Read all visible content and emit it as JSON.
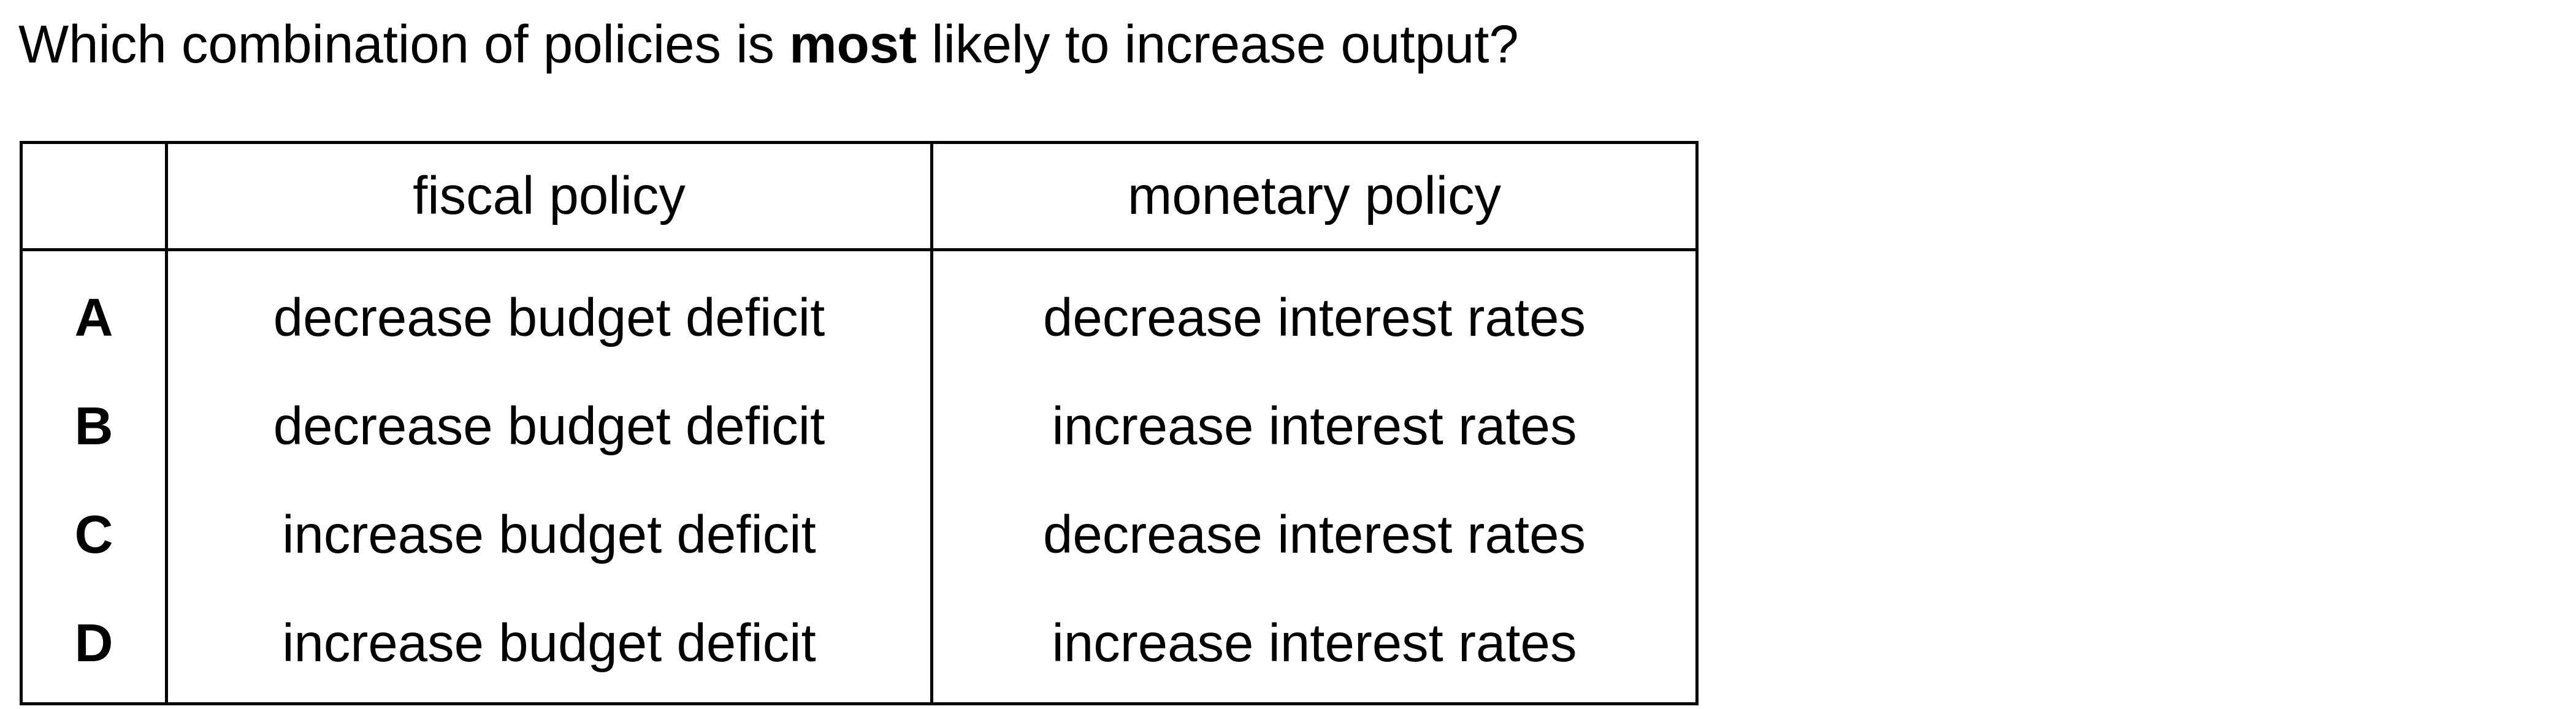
{
  "question": {
    "prefix": "Which combination of policies is ",
    "emphasis": "most",
    "suffix": " likely to increase output?"
  },
  "table": {
    "headers": [
      "",
      "fiscal policy",
      "monetary policy"
    ],
    "rows": [
      {
        "letter": "A",
        "fiscal": "decrease budget deficit",
        "monetary": "decrease interest rates"
      },
      {
        "letter": "B",
        "fiscal": "decrease budget deficit",
        "monetary": "increase interest rates"
      },
      {
        "letter": "C",
        "fiscal": "increase budget deficit",
        "monetary": "decrease interest rates"
      },
      {
        "letter": "D",
        "fiscal": "increase budget deficit",
        "monetary": "increase interest rates"
      }
    ]
  }
}
